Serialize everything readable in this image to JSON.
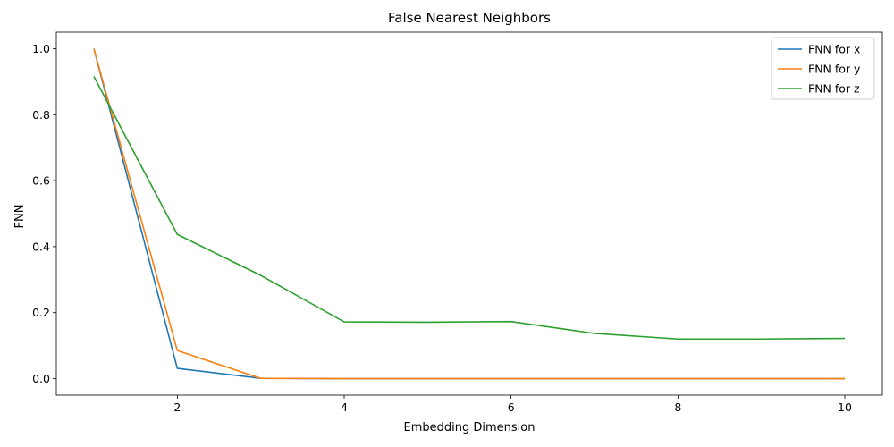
{
  "chart_data": {
    "type": "line",
    "title": "False Nearest Neighbors",
    "xlabel": "Embedding Dimension",
    "ylabel": "FNN",
    "xlim": [
      0.55,
      10.45
    ],
    "ylim": [
      -0.05,
      1.05
    ],
    "xticks": [
      2,
      4,
      6,
      8,
      10
    ],
    "yticks": [
      0.0,
      0.2,
      0.4,
      0.6,
      0.8,
      1.0
    ],
    "ytick_labels": [
      "0.0",
      "0.2",
      "0.4",
      "0.6",
      "0.8",
      "1.0"
    ],
    "grid": false,
    "legend_position": "top-right",
    "x": [
      1,
      2,
      3,
      4,
      5,
      6,
      7,
      8,
      9,
      10
    ],
    "series": [
      {
        "name": "FNN for x",
        "color": "#1f77b4",
        "values": [
          1.0,
          0.031,
          0.001,
          0.0,
          0.0,
          0.0,
          0.0,
          0.0,
          0.0,
          0.0
        ]
      },
      {
        "name": "FNN for y",
        "color": "#ff7f0e",
        "values": [
          1.0,
          0.085,
          0.001,
          0.0,
          0.0,
          0.0,
          0.0,
          0.0,
          0.0,
          0.0
        ]
      },
      {
        "name": "FNN for z",
        "color": "#2ca02c",
        "values": [
          0.916,
          0.437,
          0.313,
          0.172,
          0.171,
          0.173,
          0.137,
          0.12,
          0.12,
          0.122
        ]
      }
    ]
  }
}
